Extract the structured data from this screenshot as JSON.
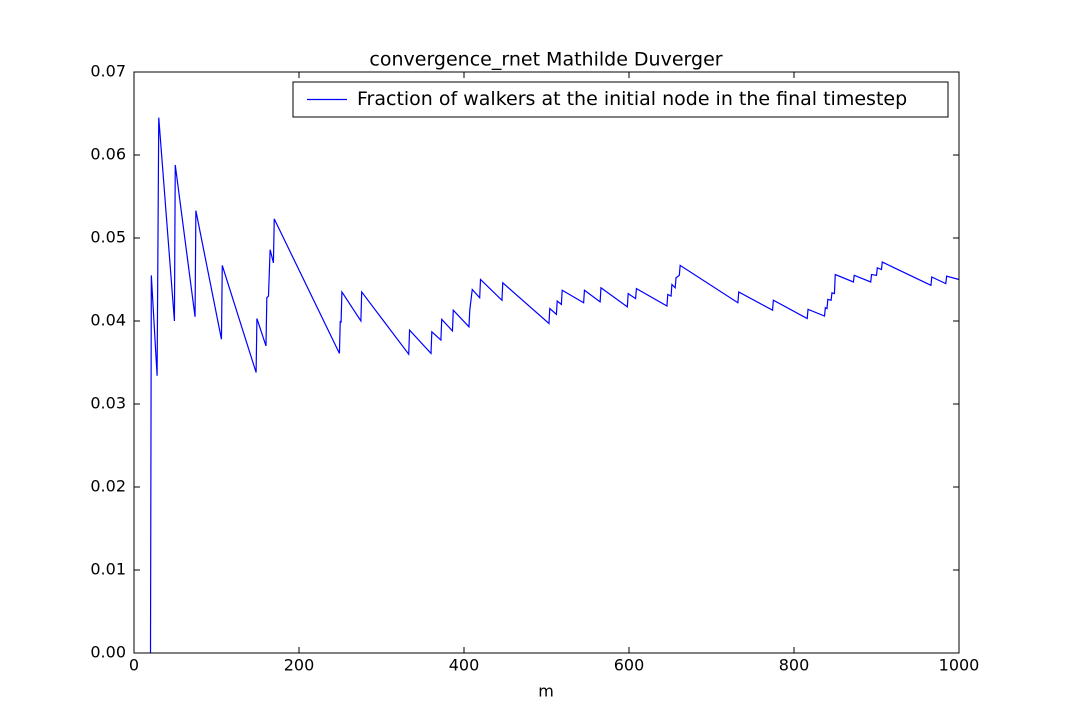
{
  "chart_data": {
    "type": "line",
    "title": "convergence_rnet Mathilde Duverger",
    "xlabel": "m",
    "x": [
      20,
      21,
      28,
      30,
      49,
      50,
      74,
      75,
      106,
      107,
      148,
      149,
      160,
      161,
      163,
      165,
      169,
      170,
      249,
      250,
      251,
      252,
      275,
      276,
      333,
      334,
      360,
      361,
      372,
      373,
      386,
      387,
      406,
      407,
      410,
      419,
      420,
      446,
      447,
      503,
      504,
      512,
      513,
      518,
      519,
      545,
      546,
      565,
      566,
      598,
      599,
      608,
      609,
      646,
      647,
      651,
      652,
      656,
      657,
      661,
      662,
      732,
      733,
      774,
      775,
      816,
      817,
      837,
      838,
      840,
      841,
      845,
      846,
      849,
      850,
      872,
      873,
      893,
      894,
      900,
      901,
      906,
      907,
      966,
      967,
      984,
      985,
      1000
    ],
    "series": [
      {
        "name": "Fraction of walkers at the initial node in the final timestep",
        "color": "#0000ff",
        "values": [
          0,
          0.0455,
          0.0334,
          0.0645,
          0.04,
          0.0588,
          0.0405,
          0.0533,
          0.0378,
          0.0467,
          0.0338,
          0.0403,
          0.037,
          0.0428,
          0.043,
          0.0486,
          0.047,
          0.0523,
          0.0361,
          0.04,
          0.0398,
          0.0435,
          0.04,
          0.0435,
          0.036,
          0.0389,
          0.0361,
          0.0387,
          0.0377,
          0.0402,
          0.0388,
          0.0413,
          0.0393,
          0.0413,
          0.0438,
          0.0428,
          0.045,
          0.0425,
          0.0446,
          0.0397,
          0.0415,
          0.0408,
          0.0424,
          0.042,
          0.0437,
          0.0422,
          0.0437,
          0.0423,
          0.044,
          0.0417,
          0.0433,
          0.0427,
          0.0439,
          0.0418,
          0.0432,
          0.043,
          0.0444,
          0.044,
          0.0452,
          0.0455,
          0.0467,
          0.0422,
          0.0435,
          0.0413,
          0.0425,
          0.0403,
          0.0414,
          0.0406,
          0.0416,
          0.0415,
          0.0426,
          0.0425,
          0.0434,
          0.0433,
          0.0456,
          0.0447,
          0.0455,
          0.0447,
          0.0456,
          0.0455,
          0.0464,
          0.0462,
          0.0471,
          0.0443,
          0.0453,
          0.0445,
          0.0454,
          0.045
        ]
      }
    ],
    "xlim": [
      0,
      1000
    ],
    "xticks": [
      0,
      200,
      400,
      600,
      800,
      1000
    ],
    "ylim": [
      0,
      0.07
    ],
    "yticks": [
      {
        "value": 0,
        "label": "0.00"
      },
      0.01,
      0.02,
      0.03,
      0.04,
      0.05,
      0.06,
      0.07
    ],
    "legend": "upper right"
  }
}
